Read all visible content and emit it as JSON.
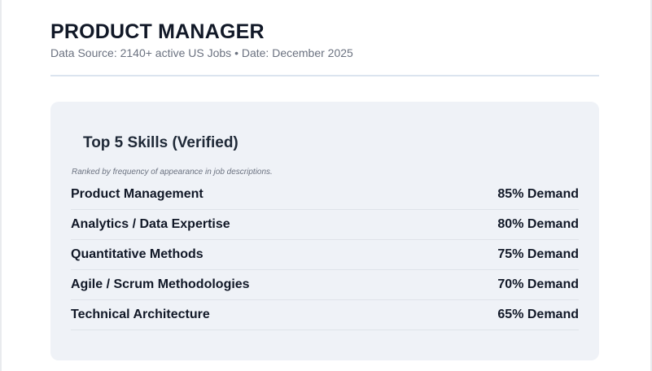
{
  "header": {
    "title": "PRODUCT MANAGER",
    "subtitle": "Data Source: 2140+ active US Jobs • Date: December 2025"
  },
  "skills_card": {
    "title": "Top 5 Skills (Verified)",
    "note": "Ranked by frequency of appearance in job descriptions.",
    "skills": [
      {
        "name": "Product Management",
        "demand": "85% Demand"
      },
      {
        "name": "Analytics / Data Expertise",
        "demand": "80% Demand"
      },
      {
        "name": "Quantitative Methods",
        "demand": "75% Demand"
      },
      {
        "name": "Agile / Scrum Methodologies",
        "demand": "70% Demand"
      },
      {
        "name": "Technical Architecture",
        "demand": "65% Demand"
      }
    ]
  },
  "colors": {
    "title_text": "#111827",
    "muted_text": "#6b7280",
    "card_background": "#eff2f7",
    "divider": "#dbe4ef"
  }
}
